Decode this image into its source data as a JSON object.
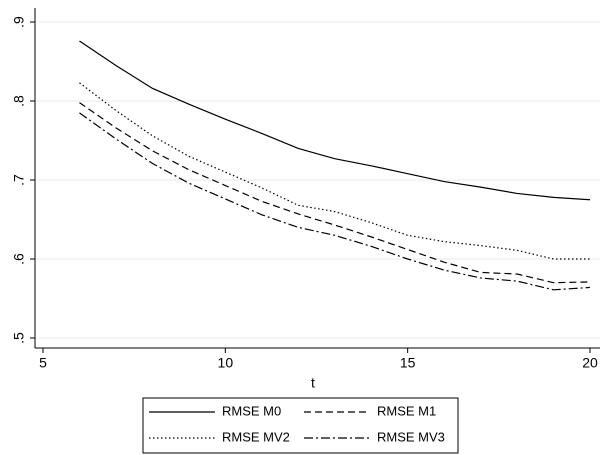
{
  "chart_data": {
    "type": "line",
    "x": [
      6,
      7,
      8,
      9,
      10,
      11,
      12,
      13,
      14,
      15,
      16,
      17,
      18,
      19,
      20
    ],
    "xlabel": "t",
    "xlim": [
      5,
      20
    ],
    "xticks": [
      5,
      10,
      15,
      20
    ],
    "ylim": [
      0.5,
      0.9
    ],
    "yticks": [
      {
        "value": 0.5,
        "label": ".5"
      },
      {
        "value": 0.6,
        "label": ".6"
      },
      {
        "value": 0.7,
        "label": ".7"
      },
      {
        "value": 0.8,
        "label": ".8"
      },
      {
        "value": 0.9,
        "label": ".9"
      }
    ],
    "grid": true,
    "legend": "bottom",
    "series": [
      {
        "name": "RMSE M0",
        "color": "#000000",
        "dash": "solid",
        "values": [
          0.876,
          0.845,
          0.816,
          0.796,
          0.777,
          0.759,
          0.74,
          0.727,
          0.718,
          0.708,
          0.698,
          0.691,
          0.683,
          0.678,
          0.675
        ]
      },
      {
        "name": "RMSE M1",
        "color": "#000000",
        "dash": "dashed",
        "values": [
          0.798,
          0.766,
          0.737,
          0.713,
          0.693,
          0.673,
          0.657,
          0.643,
          0.628,
          0.612,
          0.596,
          0.583,
          0.581,
          0.57,
          0.571
        ]
      },
      {
        "name": "RMSE MV2",
        "color": "#000000",
        "dash": "dotted",
        "values": [
          0.823,
          0.788,
          0.756,
          0.73,
          0.71,
          0.69,
          0.668,
          0.66,
          0.646,
          0.63,
          0.622,
          0.617,
          0.611,
          0.6,
          0.6
        ]
      },
      {
        "name": "RMSE MV3",
        "color": "#000000",
        "dash": "dashdot",
        "values": [
          0.785,
          0.752,
          0.721,
          0.696,
          0.676,
          0.656,
          0.64,
          0.63,
          0.616,
          0.6,
          0.586,
          0.576,
          0.572,
          0.561,
          0.564
        ]
      }
    ]
  }
}
